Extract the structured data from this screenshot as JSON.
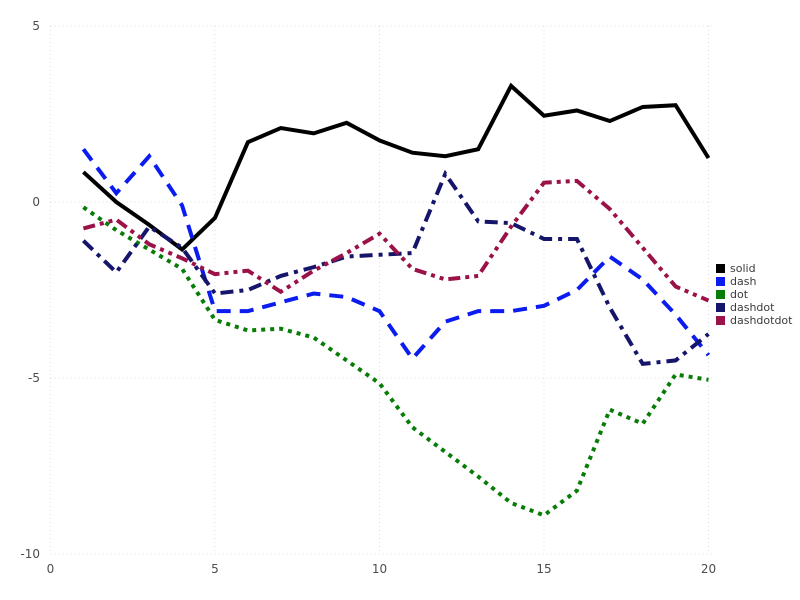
{
  "chart_data": {
    "type": "line",
    "title": "",
    "xlabel": "",
    "ylabel": "",
    "xlim": [
      0,
      20
    ],
    "ylim": [
      -10,
      5
    ],
    "x_ticks": [
      0,
      5,
      10,
      15,
      20
    ],
    "y_ticks": [
      5,
      0,
      -5,
      -10
    ],
    "grid": "dotted",
    "grid_color": "#dcdce8",
    "tick_label_color": "#4d4d4d",
    "legend_position": "right",
    "x": [
      1,
      2,
      3,
      4,
      5,
      6,
      7,
      8,
      9,
      10,
      11,
      12,
      13,
      14,
      15,
      16,
      17,
      18,
      19,
      20
    ],
    "series": [
      {
        "name": "solid",
        "linestyle": "solid",
        "color": "#000000",
        "values": [
          0.85,
          0.0,
          -0.65,
          -1.35,
          -0.45,
          1.7,
          2.1,
          1.95,
          2.25,
          1.75,
          1.4,
          1.3,
          1.5,
          3.3,
          2.45,
          2.6,
          2.3,
          2.7,
          2.75,
          1.25
        ]
      },
      {
        "name": "dash",
        "linestyle": "dash",
        "color": "#0a1cf0",
        "values": [
          1.5,
          0.25,
          1.3,
          -0.1,
          -3.1,
          -3.1,
          -2.85,
          -2.6,
          -2.7,
          -3.1,
          -4.45,
          -3.4,
          -3.1,
          -3.1,
          -2.95,
          -2.5,
          -1.55,
          -2.2,
          -3.2,
          -4.35
        ]
      },
      {
        "name": "dot",
        "linestyle": "dot",
        "color": "#077c07",
        "values": [
          -0.15,
          -0.8,
          -1.35,
          -1.9,
          -3.35,
          -3.65,
          -3.6,
          -3.85,
          -4.5,
          -5.15,
          -6.4,
          -7.1,
          -7.8,
          -8.55,
          -8.9,
          -8.2,
          -5.9,
          -6.3,
          -4.9,
          -5.05
        ]
      },
      {
        "name": "dashdot",
        "linestyle": "dashdot",
        "color": "#15156b",
        "values": [
          -1.1,
          -2.0,
          -0.7,
          -1.3,
          -2.6,
          -2.5,
          -2.1,
          -1.85,
          -1.55,
          -1.5,
          -1.45,
          0.8,
          -0.55,
          -0.6,
          -1.05,
          -1.05,
          -3.0,
          -4.6,
          -4.5,
          -3.75
        ]
      },
      {
        "name": "dashdotdot",
        "linestyle": "dashdotdot",
        "color": "#9b1248",
        "values": [
          -0.75,
          -0.5,
          -1.2,
          -1.6,
          -2.05,
          -1.95,
          -2.55,
          -1.95,
          -1.45,
          -0.9,
          -1.9,
          -2.2,
          -2.1,
          -0.7,
          0.55,
          0.6,
          -0.2,
          -1.3,
          -2.4,
          -2.8
        ]
      }
    ]
  }
}
